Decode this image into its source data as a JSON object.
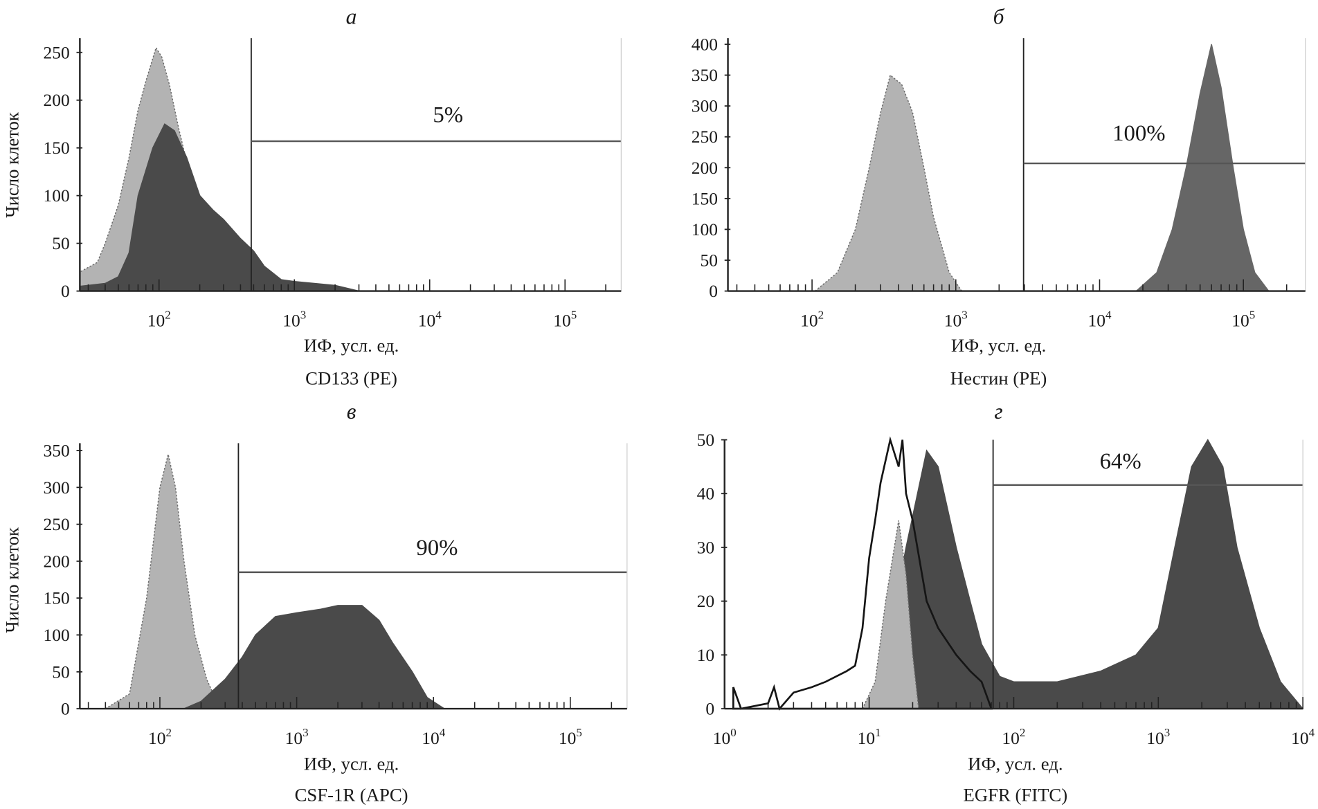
{
  "colors": {
    "isotype": "#b3b3b3",
    "isotype_outline": "#6a6a6a",
    "stain": "#4a4a4a",
    "stain_b": "#666666",
    "isotype_black": "#151515",
    "axis": "#222222",
    "gate": "#555555"
  },
  "chart_data": [
    {
      "type": "area",
      "panel_letter": "а",
      "xscale": "log",
      "xlim": [
        26,
        260000
      ],
      "ylim": [
        0,
        265
      ],
      "xticks": [
        "10^2",
        "10^3",
        "10^4",
        "10^5"
      ],
      "xtick_base": "10",
      "xtick_exps": [
        "2",
        "3",
        "4",
        "5"
      ],
      "xtick_values": [
        100,
        1000,
        10000,
        100000
      ],
      "yticks": [
        0,
        50,
        100,
        150,
        200,
        250
      ],
      "ylabel": "Число клеток",
      "xlabel": "ИФ, усл. ед.",
      "marker": "CD133 (PE)",
      "gate": {
        "x": 480,
        "y": 157,
        "label": "5%"
      },
      "series": [
        {
          "role": "isotype",
          "points": [
            [
              26,
              20
            ],
            [
              35,
              30
            ],
            [
              40,
              50
            ],
            [
              50,
              90
            ],
            [
              60,
              140
            ],
            [
              70,
              190
            ],
            [
              80,
              220
            ],
            [
              95,
              255
            ],
            [
              105,
              245
            ],
            [
              120,
              215
            ],
            [
              140,
              170
            ],
            [
              170,
              120
            ],
            [
              200,
              95
            ],
            [
              250,
              60
            ],
            [
              300,
              45
            ],
            [
              400,
              22
            ],
            [
              600,
              6
            ],
            [
              1000,
              0
            ]
          ]
        },
        {
          "role": "stain",
          "points": [
            [
              26,
              5
            ],
            [
              40,
              8
            ],
            [
              50,
              15
            ],
            [
              60,
              40
            ],
            [
              70,
              100
            ],
            [
              90,
              150
            ],
            [
              110,
              175
            ],
            [
              130,
              168
            ],
            [
              160,
              140
            ],
            [
              200,
              100
            ],
            [
              250,
              85
            ],
            [
              300,
              75
            ],
            [
              400,
              55
            ],
            [
              500,
              42
            ],
            [
              600,
              26
            ],
            [
              800,
              12
            ],
            [
              1000,
              10
            ],
            [
              2000,
              6
            ],
            [
              3000,
              0
            ]
          ]
        }
      ]
    },
    {
      "type": "area",
      "panel_letter": "б",
      "xscale": "log",
      "xlim": [
        26,
        270000
      ],
      "ylim": [
        0,
        410
      ],
      "xticks": [
        "10^2",
        "10^3",
        "10^4",
        "10^5"
      ],
      "xtick_base": "10",
      "xtick_exps": [
        "2",
        "3",
        "4",
        "5"
      ],
      "xtick_values": [
        100,
        1000,
        10000,
        100000
      ],
      "yticks": [
        0,
        50,
        100,
        150,
        200,
        250,
        300,
        350,
        400
      ],
      "ylabel": "",
      "xlabel": "ИФ, усл. ед.",
      "marker": "Нестин (PE)",
      "gate": {
        "x": 2960,
        "y": 207,
        "label": "100%"
      },
      "series": [
        {
          "role": "isotype",
          "points": [
            [
              105,
              0
            ],
            [
              150,
              30
            ],
            [
              200,
              100
            ],
            [
              250,
              200
            ],
            [
              300,
              290
            ],
            [
              350,
              350
            ],
            [
              420,
              335
            ],
            [
              500,
              290
            ],
            [
              600,
              200
            ],
            [
              700,
              120
            ],
            [
              900,
              30
            ],
            [
              1100,
              0
            ]
          ]
        },
        {
          "role": "stain_b",
          "points": [
            [
              18000,
              0
            ],
            [
              25000,
              30
            ],
            [
              32000,
              100
            ],
            [
              40000,
              200
            ],
            [
              50000,
              320
            ],
            [
              60000,
              400
            ],
            [
              70000,
              330
            ],
            [
              85000,
              200
            ],
            [
              100000,
              100
            ],
            [
              120000,
              30
            ],
            [
              150000,
              0
            ]
          ]
        }
      ]
    },
    {
      "type": "area",
      "panel_letter": "в",
      "xscale": "log",
      "xlim": [
        26,
        260000
      ],
      "ylim": [
        0,
        360
      ],
      "xticks": [
        "10^2",
        "10^3",
        "10^4",
        "10^5"
      ],
      "xtick_base": "10",
      "xtick_exps": [
        "2",
        "3",
        "4",
        "5"
      ],
      "xtick_values": [
        100,
        1000,
        10000,
        100000
      ],
      "yticks": [
        0,
        50,
        100,
        150,
        200,
        250,
        300,
        350
      ],
      "ylabel": "Число клеток",
      "xlabel": "ИФ, усл. ед.",
      "marker": "CSF-1R (APC)",
      "gate": {
        "x": 375,
        "y": 185,
        "label": "90%"
      },
      "series": [
        {
          "role": "isotype",
          "points": [
            [
              40,
              0
            ],
            [
              60,
              20
            ],
            [
              80,
              150
            ],
            [
              100,
              300
            ],
            [
              115,
              345
            ],
            [
              130,
              300
            ],
            [
              150,
              200
            ],
            [
              180,
              100
            ],
            [
              220,
              40
            ],
            [
              260,
              10
            ],
            [
              300,
              0
            ]
          ]
        },
        {
          "role": "stain",
          "points": [
            [
              150,
              0
            ],
            [
              200,
              10
            ],
            [
              300,
              40
            ],
            [
              400,
              70
            ],
            [
              500,
              100
            ],
            [
              700,
              125
            ],
            [
              1000,
              130
            ],
            [
              1500,
              135
            ],
            [
              2000,
              140
            ],
            [
              3000,
              140
            ],
            [
              4000,
              120
            ],
            [
              5000,
              90
            ],
            [
              7000,
              50
            ],
            [
              9000,
              15
            ],
            [
              12000,
              0
            ]
          ]
        }
      ]
    },
    {
      "type": "area",
      "panel_letter": "г",
      "xscale": "log",
      "xlim": [
        1,
        10000
      ],
      "ylim": [
        0,
        50
      ],
      "xticks": [
        "10^0",
        "10^1",
        "10^2",
        "10^3",
        "10^4"
      ],
      "xtick_base": "10",
      "xtick_exps": [
        "0",
        "1",
        "2",
        "3",
        "4"
      ],
      "xtick_values": [
        1,
        10,
        100,
        1000,
        10000
      ],
      "yticks": [
        0,
        10,
        20,
        30,
        40,
        50
      ],
      "ylabel": "",
      "xlabel": "ИФ, усл. ед.",
      "marker": "EGFR (FITC)",
      "gate": {
        "x": 72,
        "y": 41.6,
        "label": "64%"
      },
      "series": [
        {
          "role": "stain",
          "points": [
            [
              10,
              0
            ],
            [
              13,
              10
            ],
            [
              18,
              30
            ],
            [
              25,
              48
            ],
            [
              30,
              45
            ],
            [
              40,
              30
            ],
            [
              50,
              20
            ],
            [
              60,
              12
            ],
            [
              80,
              6
            ],
            [
              100,
              5
            ],
            [
              200,
              5
            ],
            [
              400,
              7
            ],
            [
              700,
              10
            ],
            [
              1000,
              15
            ],
            [
              1300,
              30
            ],
            [
              1700,
              45
            ],
            [
              2200,
              50
            ],
            [
              2800,
              45
            ],
            [
              3500,
              30
            ],
            [
              5000,
              15
            ],
            [
              7000,
              5
            ],
            [
              10000,
              0
            ]
          ]
        },
        {
          "role": "isotype",
          "points": [
            [
              9,
              0
            ],
            [
              11,
              5
            ],
            [
              13,
              20
            ],
            [
              16,
              35
            ],
            [
              18,
              25
            ],
            [
              20,
              10
            ],
            [
              22,
              0
            ]
          ]
        },
        {
          "role": "isotype_black",
          "points": [
            [
              1.15,
              4
            ],
            [
              1.3,
              0
            ],
            [
              2,
              1
            ],
            [
              2.2,
              4
            ],
            [
              2.4,
              0
            ],
            [
              3,
              3
            ],
            [
              4,
              4
            ],
            [
              5,
              5
            ],
            [
              7,
              7
            ],
            [
              8,
              8
            ],
            [
              9,
              15
            ],
            [
              10,
              28
            ],
            [
              11,
              35
            ],
            [
              12,
              42
            ],
            [
              14,
              50
            ],
            [
              16,
              45
            ],
            [
              17,
              50
            ],
            [
              18,
              40
            ],
            [
              20,
              35
            ],
            [
              25,
              20
            ],
            [
              30,
              15
            ],
            [
              40,
              10
            ],
            [
              50,
              7
            ],
            [
              60,
              5
            ],
            [
              70,
              0
            ]
          ]
        }
      ]
    }
  ]
}
